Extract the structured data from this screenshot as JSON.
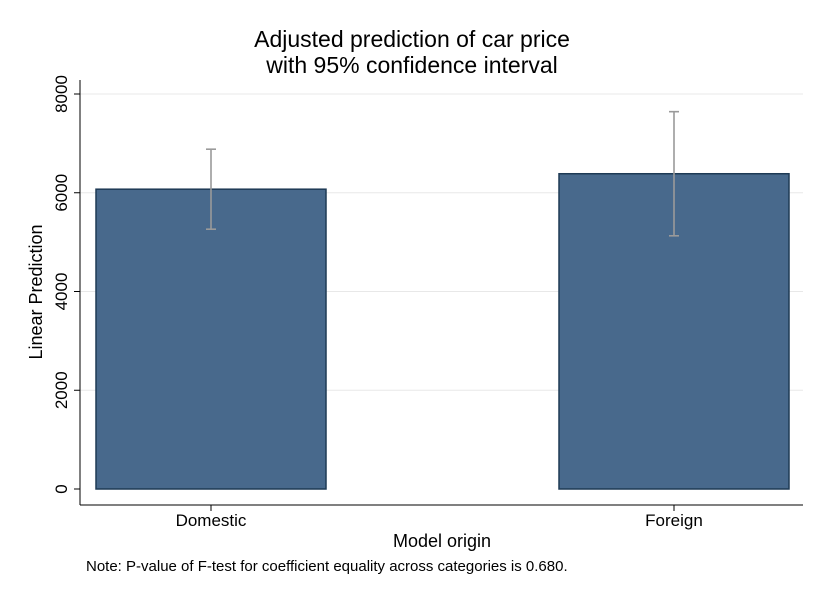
{
  "chart_data": {
    "type": "bar",
    "title_lines": [
      "Adjusted prediction of car price",
      "with 95% confidence interval"
    ],
    "categories": [
      "Domestic",
      "Foreign"
    ],
    "values": [
      6072,
      6385
    ],
    "ci_lower": [
      5262,
      5128
    ],
    "ci_upper": [
      6882,
      7642
    ],
    "xlabel": "Model origin",
    "ylabel": "Linear Prediction",
    "yticks": [
      "0",
      "2000",
      "4000",
      "6000",
      "8000"
    ],
    "ylim": [
      0,
      8000
    ],
    "grid": true,
    "note": "Note: P-value of F-test for coefficient equality across categories is 0.680.",
    "colors": {
      "bar_fill": "#48698c",
      "bar_stroke": "#1e3a55",
      "ci": "#9a9a9a",
      "grid": "#e8e8e8",
      "axis": "#000000"
    }
  }
}
